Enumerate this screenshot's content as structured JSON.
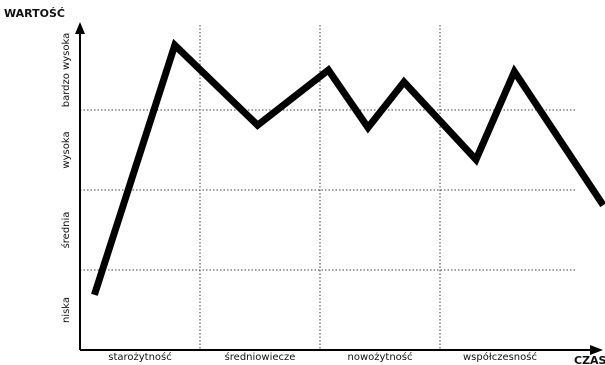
{
  "chart_data": {
    "type": "line",
    "y_axis_label": "WARTOŚĆ",
    "x_axis_label": "CZAS",
    "xlim": [
      0,
      4.4
    ],
    "ylim": [
      0,
      4
    ],
    "xticks": [
      {
        "value": 0.5,
        "label": "starożytność"
      },
      {
        "value": 1.5,
        "label": "średniowiecze"
      },
      {
        "value": 2.5,
        "label": "nowożytność"
      },
      {
        "value": 3.5,
        "label": "współczesność"
      }
    ],
    "yticks": [
      {
        "value": 0.5,
        "label": "niska"
      },
      {
        "value": 1.5,
        "label": "średnia"
      },
      {
        "value": 2.5,
        "label": "wysoka"
      },
      {
        "value": 3.5,
        "label": "bardzo wysoka"
      }
    ],
    "x_grid": [
      1,
      2,
      3
    ],
    "y_grid": [
      1,
      2,
      3
    ],
    "grid": true,
    "series": [
      {
        "color": "#000000",
        "x": [
          0.12,
          0.79,
          1.48,
          2.07,
          2.4,
          2.7,
          3.3,
          3.62,
          4.36
        ],
        "values": [
          0.69,
          3.81,
          2.81,
          3.5,
          2.78,
          3.35,
          2.38,
          3.48,
          1.81
        ]
      }
    ]
  }
}
